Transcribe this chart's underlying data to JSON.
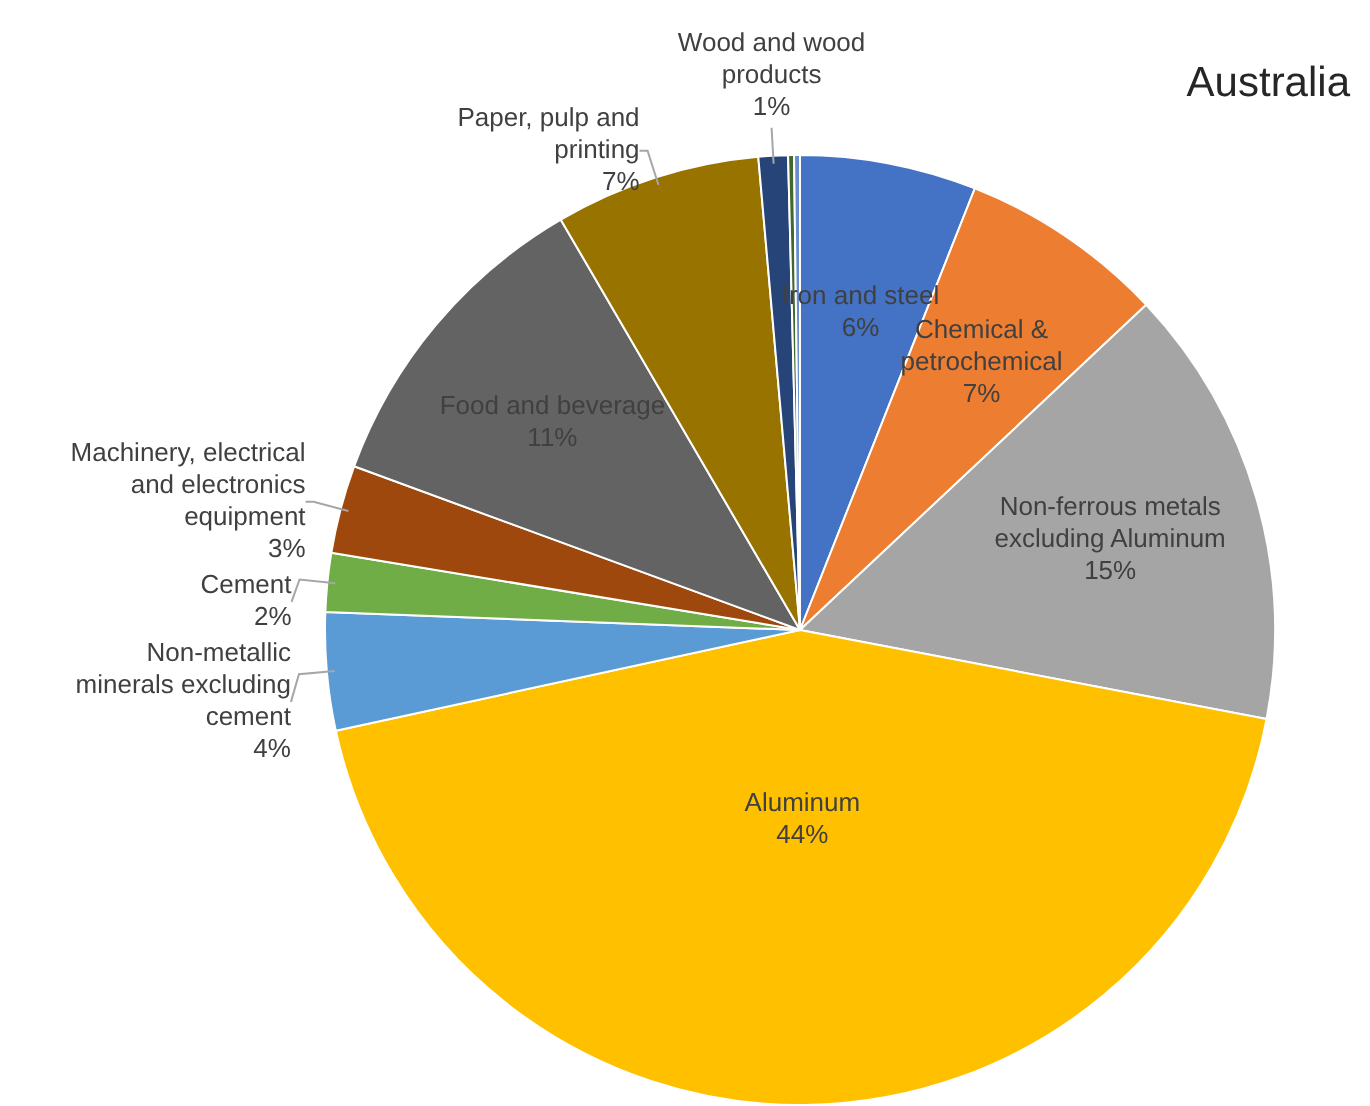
{
  "chart_data": {
    "type": "pie",
    "title": "Australia",
    "categories": [
      "Iron and steel",
      "Chemical & petrochemical",
      "Non-ferrous metals excluding Aluminum",
      "Aluminum",
      "Non-metallic minerals excluding cement",
      "Cement",
      "Machinery, electrical and electronics equipment",
      "Food and beverage",
      "Paper, pulp and printing",
      "Wood and wood products",
      null,
      null
    ],
    "values": [
      6,
      7,
      15,
      43.6,
      4,
      2,
      3,
      11,
      7,
      1,
      0.2,
      0.2
    ],
    "value_labels": [
      "6%",
      "7%",
      "15%",
      "44%",
      "4%",
      "2%",
      "3%",
      "11%",
      "7%",
      "1%",
      null,
      null
    ],
    "colors": [
      "#4472c4",
      "#ed7d31",
      "#a5a5a5",
      "#ffc000",
      "#5b9bd5",
      "#70ad47",
      "#9e480e",
      "#636363",
      "#997300",
      "#264478",
      "#43682b",
      "#698ed0"
    ],
    "legend": false
  }
}
